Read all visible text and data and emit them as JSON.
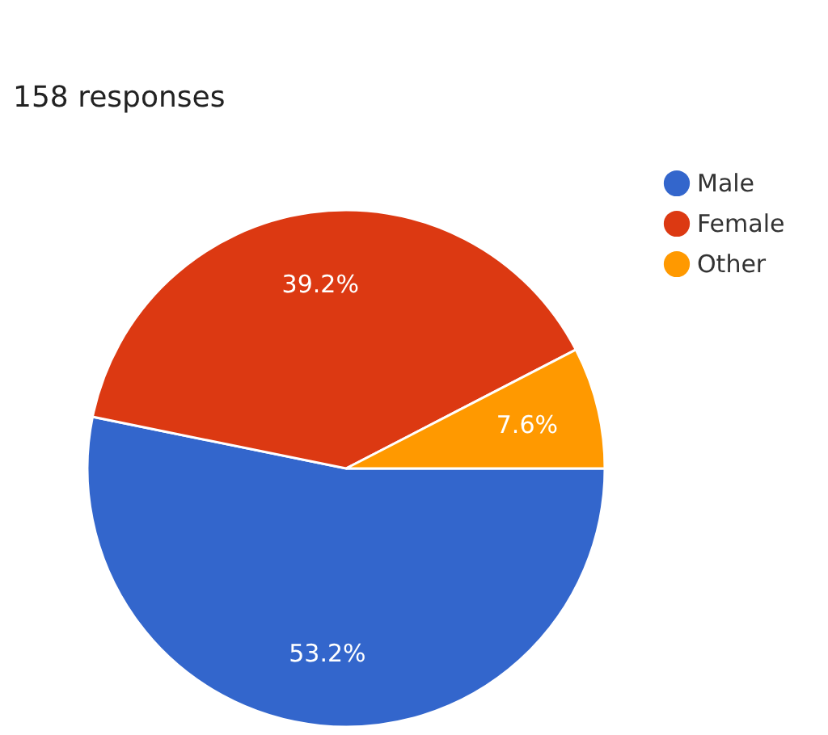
{
  "chart_data": {
    "type": "pie",
    "title": "158 responses",
    "categories": [
      "Male",
      "Female",
      "Other"
    ],
    "values": [
      53.2,
      39.2,
      7.6
    ],
    "colors": [
      "#3366cc",
      "#dc3912",
      "#ff9900"
    ],
    "value_labels": [
      "53.2%",
      "39.2%",
      "7.6%"
    ],
    "legend": "right"
  }
}
